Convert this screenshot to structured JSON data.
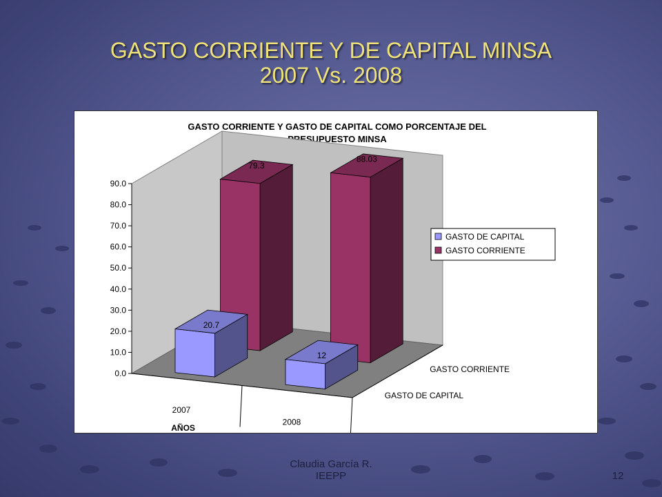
{
  "slide": {
    "title_line1": "GASTO CORRIENTE Y DE CAPITAL MINSA",
    "title_line2": "2007 Vs. 2008",
    "footer_line1": "Claudia García R.",
    "footer_line2": "IEEPP",
    "page_number": "12"
  },
  "chart_data": {
    "type": "bar",
    "subtype": "3d-clustered",
    "title_line1": "GASTO CORRIENTE Y GASTO DE CAPITAL COMO PORCENTAJE DEL",
    "title_line2": "PRESUPUESTO MINSA",
    "xlabel": "AÑOS",
    "categories": [
      "2007",
      "2008"
    ],
    "series": [
      {
        "name": "GASTO DE CAPITAL",
        "values": [
          20.7,
          12
        ],
        "labels": [
          "20.7",
          "12"
        ],
        "color": "#9999ff"
      },
      {
        "name": "GASTO CORRIENTE",
        "values": [
          79.3,
          88.03
        ],
        "labels": [
          "79.3",
          "88.03"
        ],
        "color": "#993366"
      }
    ],
    "depth_labels": [
      "GASTO CORRIENTE",
      "GASTO DE CAPITAL"
    ],
    "ylim": [
      0,
      90
    ],
    "yticks": [
      "0.0",
      "10.0",
      "20.0",
      "30.0",
      "40.0",
      "50.0",
      "60.0",
      "70.0",
      "80.0",
      "90.0"
    ],
    "legend_position": "right",
    "grid": false
  }
}
